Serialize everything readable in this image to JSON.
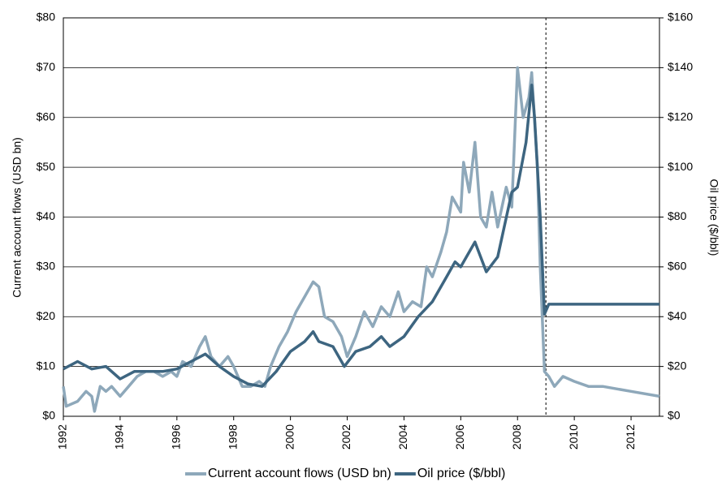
{
  "chart_data": {
    "type": "line",
    "y_label": "Current account flows (USD bn)",
    "y2_label": "Oil price ($/bbl)",
    "xlim": [
      1992,
      2013
    ],
    "xticks": [
      1992,
      1994,
      1996,
      1998,
      2000,
      2002,
      2004,
      2006,
      2008,
      2010,
      2012
    ],
    "ylim": [
      0,
      80
    ],
    "yticks": [
      {
        "value": 0,
        "label": "$0"
      },
      {
        "value": 10,
        "label": "$10"
      },
      {
        "value": 20,
        "label": "$20"
      },
      {
        "value": 30,
        "label": "$30"
      },
      {
        "value": 40,
        "label": "$40"
      },
      {
        "value": 50,
        "label": "$50"
      },
      {
        "value": 60,
        "label": "$60"
      },
      {
        "value": 70,
        "label": "$70"
      },
      {
        "value": 80,
        "label": "$80"
      }
    ],
    "y2lim": [
      0,
      160
    ],
    "y2ticks": [
      {
        "value": 0,
        "label": "$0"
      },
      {
        "value": 20,
        "label": "$20"
      },
      {
        "value": 40,
        "label": "$40"
      },
      {
        "value": 60,
        "label": "$60"
      },
      {
        "value": 80,
        "label": "$80"
      },
      {
        "value": 100,
        "label": "$100"
      },
      {
        "value": 120,
        "label": "$120"
      },
      {
        "value": 140,
        "label": "$140"
      },
      {
        "value": 160,
        "label": "$160"
      }
    ],
    "grid": true,
    "vline_x": 2009,
    "legend": "bottom",
    "series": [
      {
        "name": "Current account flows (USD bn)",
        "color": "#8ea8ba",
        "axis": "y",
        "x": [
          1992.0,
          1992.1,
          1992.5,
          1992.8,
          1993.0,
          1993.1,
          1993.3,
          1993.5,
          1993.7,
          1994.0,
          1994.3,
          1994.6,
          1994.9,
          1995.2,
          1995.5,
          1995.8,
          1996.0,
          1996.2,
          1996.5,
          1996.8,
          1997.0,
          1997.2,
          1997.5,
          1997.8,
          1998.0,
          1998.3,
          1998.6,
          1998.9,
          1999.1,
          1999.3,
          1999.6,
          1999.9,
          2000.2,
          2000.5,
          2000.8,
          2001.0,
          2001.2,
          2001.5,
          2001.8,
          2002.0,
          2002.3,
          2002.6,
          2002.9,
          2003.2,
          2003.5,
          2003.8,
          2004.0,
          2004.3,
          2004.6,
          2004.8,
          2005.0,
          2005.3,
          2005.5,
          2005.7,
          2006.0,
          2006.1,
          2006.3,
          2006.5,
          2006.7,
          2006.9,
          2007.1,
          2007.3,
          2007.6,
          2007.8,
          2008.0,
          2008.2,
          2008.4,
          2008.5,
          2008.7,
          2008.8,
          2008.95,
          2009.1,
          2009.3,
          2009.6,
          2010.0,
          2010.5,
          2011.0,
          2012.0,
          2013.0
        ],
        "values": [
          6,
          2,
          3,
          5,
          4,
          1,
          6,
          5,
          6,
          4,
          6,
          8,
          9,
          9,
          8,
          9,
          8,
          11,
          10,
          14,
          16,
          12,
          10,
          12,
          10,
          6,
          6,
          7,
          6,
          10,
          14,
          17,
          21,
          24,
          27,
          26,
          20,
          19,
          16,
          12,
          16,
          21,
          18,
          22,
          20,
          25,
          21,
          23,
          22,
          30,
          28,
          33,
          37,
          44,
          41,
          51,
          45,
          55,
          40,
          38,
          45,
          38,
          46,
          42,
          70,
          60,
          64,
          69,
          50,
          30,
          9,
          8,
          6,
          8,
          7,
          6,
          6,
          5,
          4
        ]
      },
      {
        "name": "Oil price ($/bbl)",
        "color": "#3d6580",
        "axis": "y2",
        "x": [
          1992.0,
          1992.5,
          1993.0,
          1993.5,
          1994.0,
          1994.5,
          1995.0,
          1995.5,
          1996.0,
          1996.5,
          1997.0,
          1997.5,
          1998.0,
          1998.5,
          1999.0,
          1999.5,
          2000.0,
          2000.5,
          2000.8,
          2001.0,
          2001.5,
          2001.9,
          2002.3,
          2002.8,
          2003.2,
          2003.5,
          2004.0,
          2004.5,
          2005.0,
          2005.5,
          2005.8,
          2006.0,
          2006.5,
          2006.9,
          2007.3,
          2007.8,
          2008.0,
          2008.3,
          2008.5,
          2008.6,
          2008.8,
          2008.95,
          2009.1,
          2013.0
        ],
        "values": [
          19,
          22,
          19,
          20,
          15,
          18,
          18,
          18,
          19,
          22,
          25,
          20,
          16,
          13,
          12,
          18,
          26,
          30,
          34,
          30,
          28,
          20,
          26,
          28,
          32,
          28,
          32,
          40,
          46,
          56,
          62,
          60,
          70,
          58,
          64,
          90,
          92,
          110,
          133,
          120,
          80,
          41,
          45,
          45
        ]
      }
    ]
  }
}
